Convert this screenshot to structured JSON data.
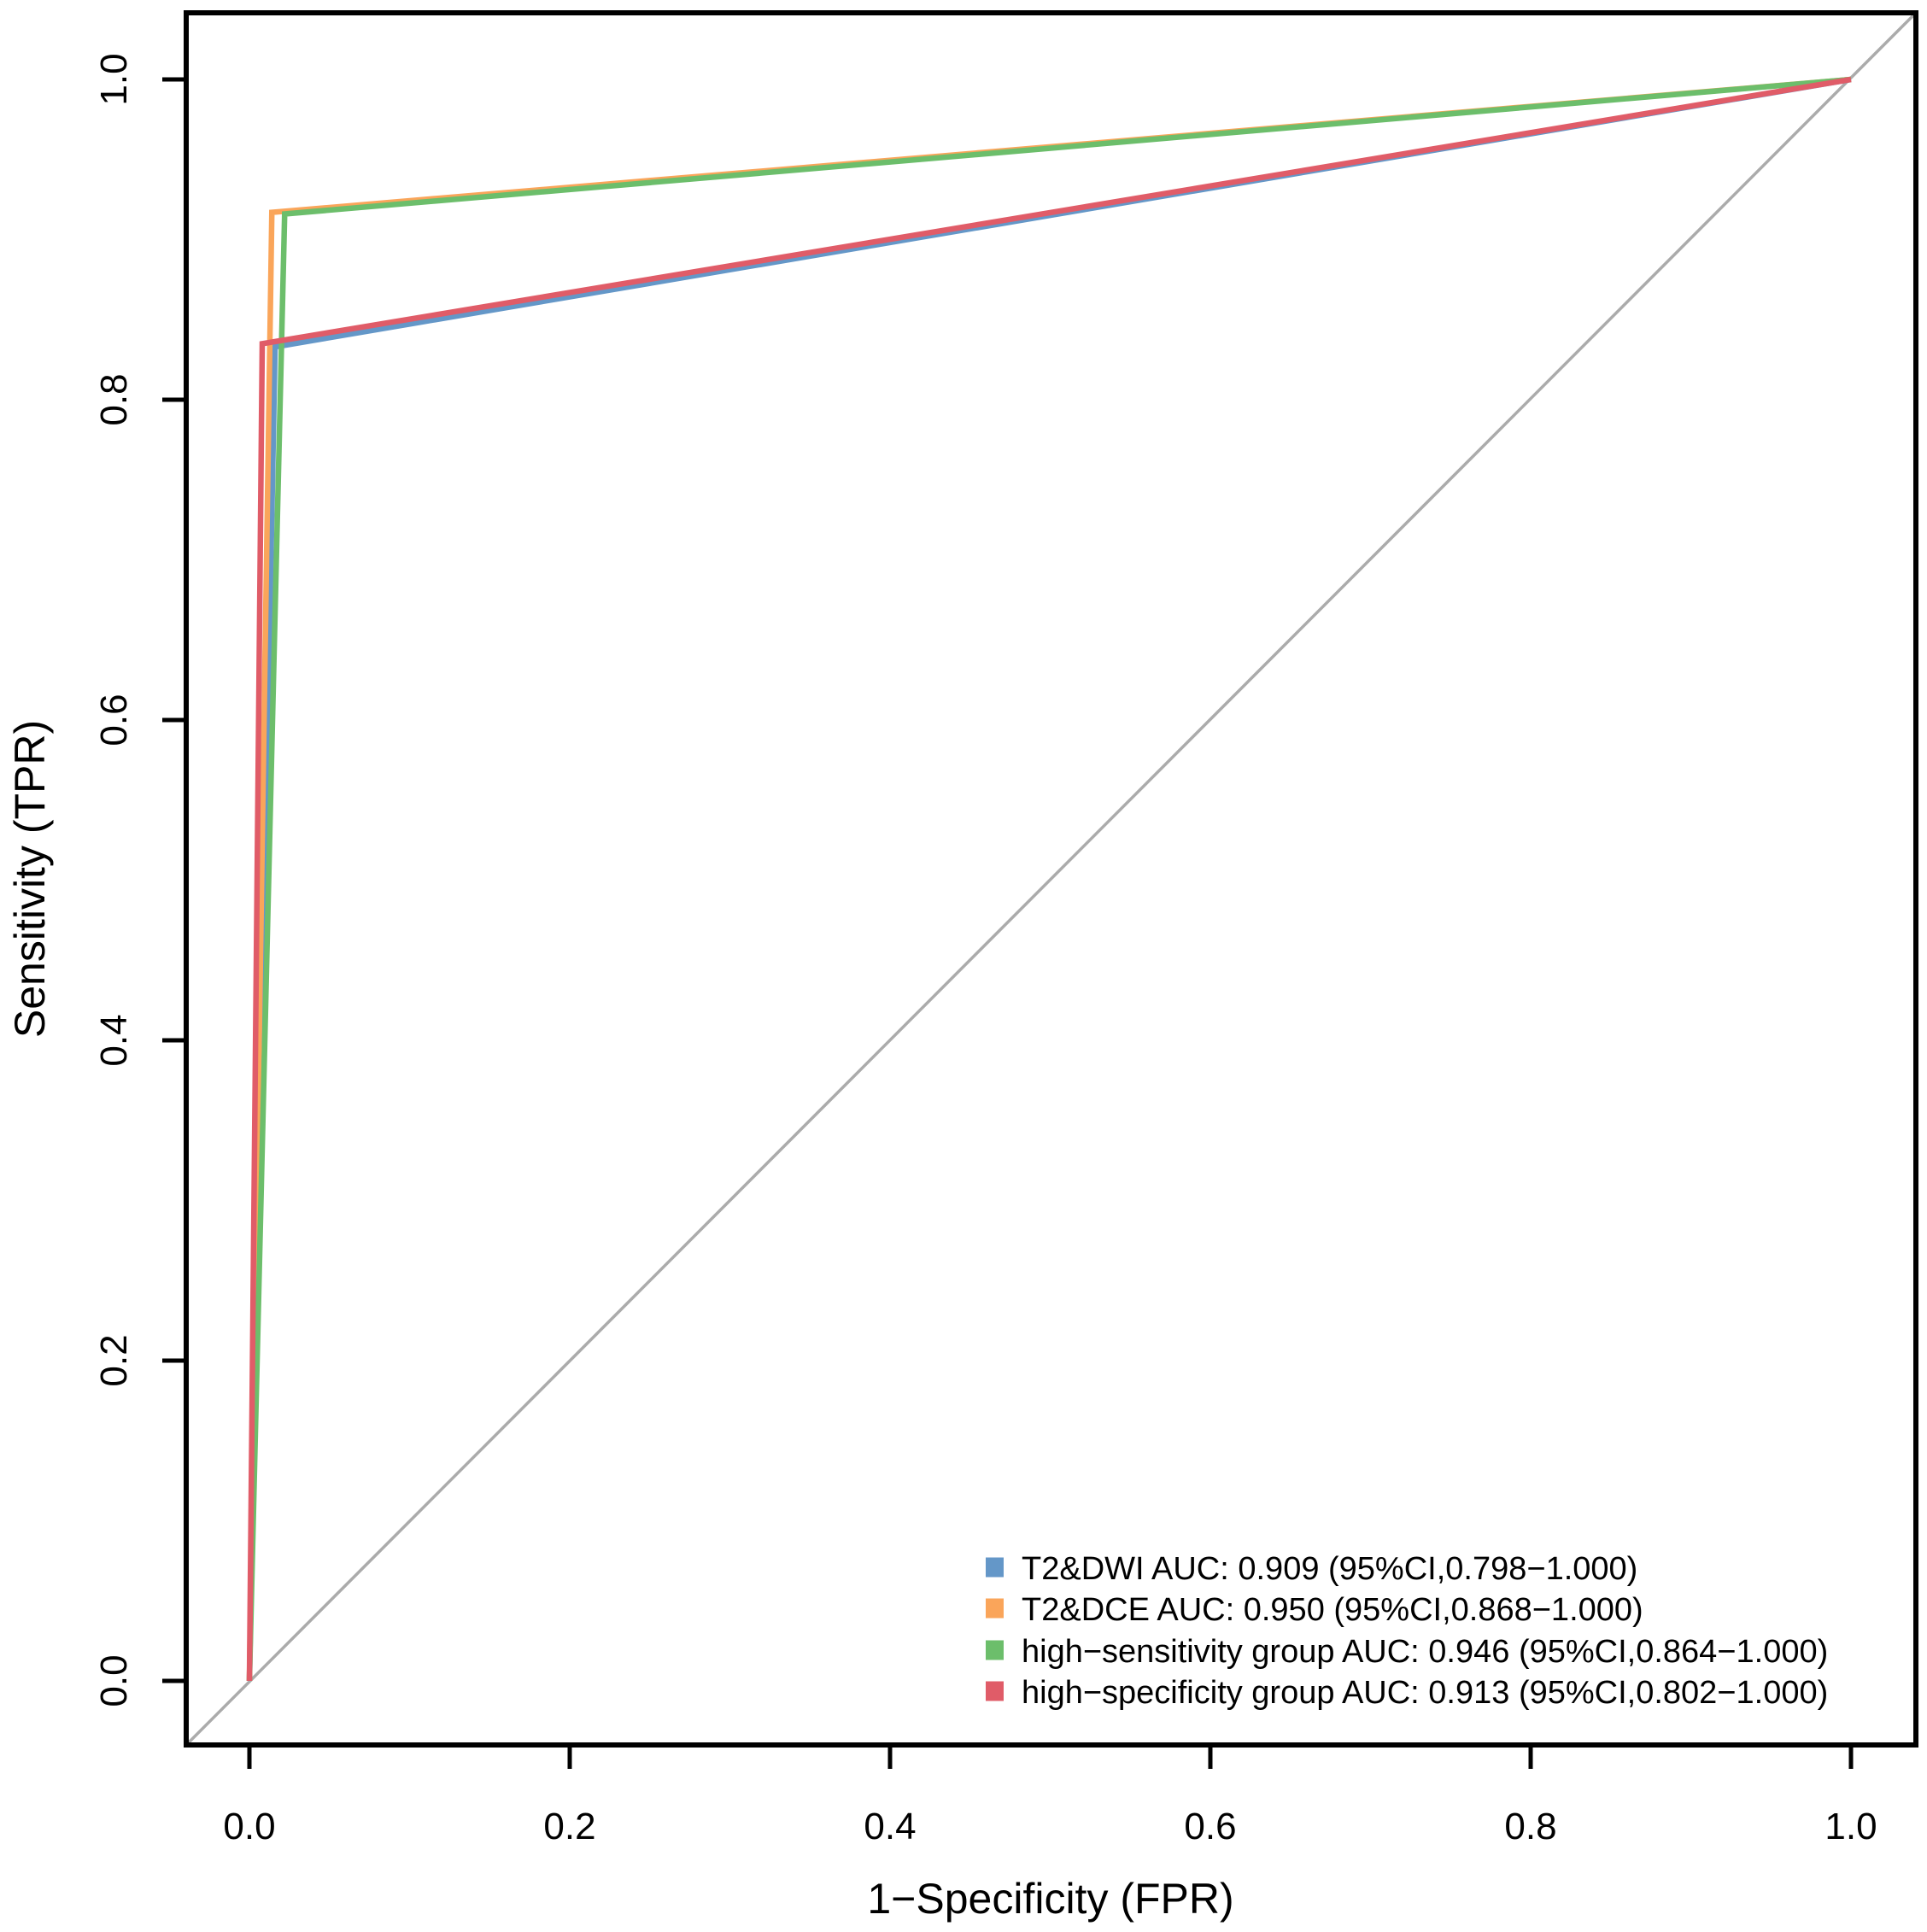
{
  "chart_data": {
    "type": "line",
    "subtype": "roc-curves",
    "title": "",
    "xlabel": "1−Specificity (FPR)",
    "ylabel": "Sensitivity (TPR)",
    "xlim": [
      0,
      1
    ],
    "ylim": [
      0,
      1
    ],
    "x_ticks": [
      "0.0",
      "0.2",
      "0.4",
      "0.6",
      "0.8",
      "1.0"
    ],
    "y_ticks": [
      "0.0",
      "0.2",
      "0.4",
      "0.6",
      "0.8",
      "1.0"
    ],
    "grid": false,
    "legend_position": "bottom-right",
    "reference_line": {
      "name": "chance-diagonal",
      "from": [
        0,
        0
      ],
      "to": [
        1,
        1
      ],
      "color": "#ABABAB"
    },
    "series": [
      {
        "name": "T2&DWI",
        "legend_label": "T2&DWI AUC: 0.909 (95%CI,0.798−1.000)",
        "auc": 0.909,
        "ci_95": "0.798−1.000",
        "color": "#6497C8",
        "points": [
          [
            0,
            0
          ],
          [
            0.016,
            0.833
          ],
          [
            1,
            1
          ]
        ]
      },
      {
        "name": "T2&DCE",
        "legend_label": "T2&DCE AUC: 0.950 (95%CI,0.868−1.000)",
        "auc": 0.95,
        "ci_95": "0.868−1.000",
        "color": "#FAA55A",
        "points": [
          [
            0,
            0
          ],
          [
            0.014,
            0.917
          ],
          [
            1,
            1
          ]
        ]
      },
      {
        "name": "high−sensitivity group",
        "legend_label": "high−sensitivity group AUC: 0.946 (95%CI,0.864−1.000)",
        "auc": 0.946,
        "ci_95": "0.864−1.000",
        "color": "#6CBE6B",
        "points": [
          [
            0,
            0
          ],
          [
            0.022,
            0.916
          ],
          [
            1,
            1
          ]
        ]
      },
      {
        "name": "high−specificity group",
        "legend_label": "high−specificity group AUC: 0.913 (95%CI,0.802−1.000)",
        "auc": 0.913,
        "ci_95": "0.802−1.000",
        "color": "#E05C68",
        "points": [
          [
            0,
            0
          ],
          [
            0.008,
            0.835
          ],
          [
            1,
            1
          ]
        ]
      }
    ]
  }
}
